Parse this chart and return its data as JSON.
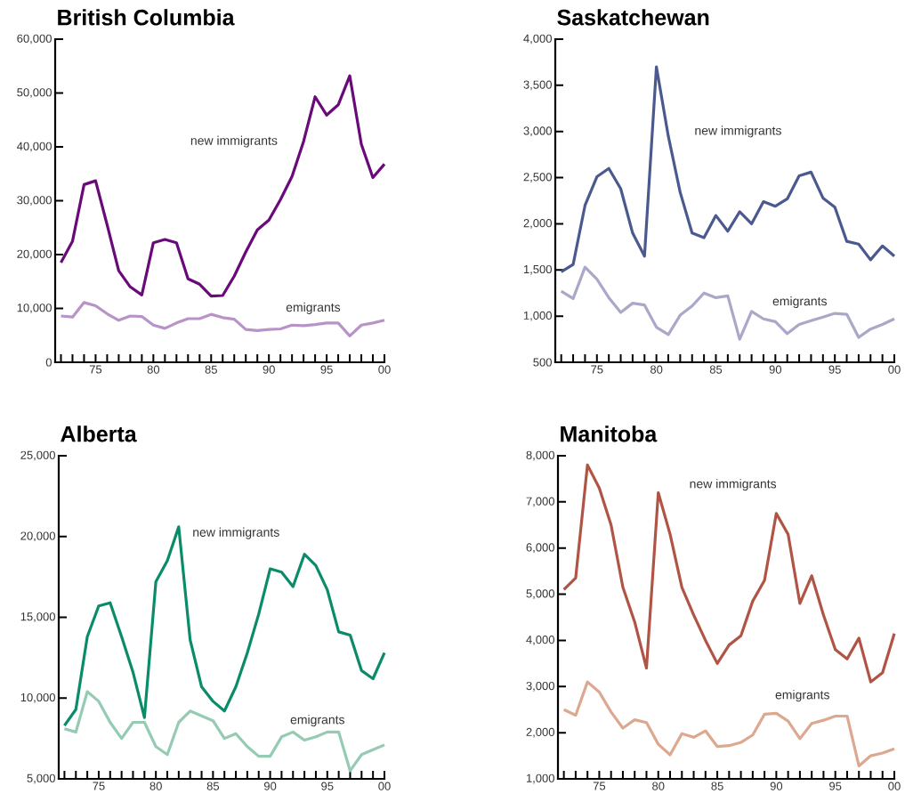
{
  "chart_data": [
    {
      "type": "line",
      "title": "British Columbia",
      "x": [
        1972,
        1973,
        1974,
        1975,
        1976,
        1977,
        1978,
        1979,
        1980,
        1981,
        1982,
        1983,
        1984,
        1985,
        1986,
        1987,
        1988,
        1989,
        1990,
        1991,
        1992,
        1993,
        1994,
        1995,
        1996,
        1997,
        1998,
        1999,
        2000
      ],
      "xlim": [
        1971.5,
        2000
      ],
      "xticks": [
        {
          "value": 1972,
          "label": null
        },
        {
          "value": 1973,
          "label": null
        },
        {
          "value": 1974,
          "label": null
        },
        {
          "value": 1975,
          "label": "75"
        },
        {
          "value": 1976,
          "label": null
        },
        {
          "value": 1977,
          "label": null
        },
        {
          "value": 1978,
          "label": null
        },
        {
          "value": 1979,
          "label": null
        },
        {
          "value": 1980,
          "label": "80"
        },
        {
          "value": 1981,
          "label": null
        },
        {
          "value": 1982,
          "label": null
        },
        {
          "value": 1983,
          "label": null
        },
        {
          "value": 1984,
          "label": null
        },
        {
          "value": 1985,
          "label": "85"
        },
        {
          "value": 1986,
          "label": null
        },
        {
          "value": 1987,
          "label": null
        },
        {
          "value": 1988,
          "label": null
        },
        {
          "value": 1989,
          "label": null
        },
        {
          "value": 1990,
          "label": "90"
        },
        {
          "value": 1991,
          "label": null
        },
        {
          "value": 1992,
          "label": null
        },
        {
          "value": 1993,
          "label": null
        },
        {
          "value": 1994,
          "label": null
        },
        {
          "value": 1995,
          "label": "95"
        },
        {
          "value": 1996,
          "label": null
        },
        {
          "value": 1997,
          "label": null
        },
        {
          "value": 1998,
          "label": null
        },
        {
          "value": 1999,
          "label": null
        },
        {
          "value": 2000,
          "label": "00"
        }
      ],
      "ylim": [
        0,
        60000
      ],
      "yticks": [
        0,
        {
          "value": 10000,
          "label": "10,000"
        },
        {
          "value": 20000,
          "label": "20,000"
        },
        {
          "value": 30000,
          "label": "30,000"
        },
        {
          "value": 40000,
          "label": "40,000"
        },
        {
          "value": 50000,
          "label": "50,000"
        },
        {
          "value": 60000,
          "label": "60,000"
        }
      ],
      "series": [
        {
          "name": "new immigrants",
          "color": "#6a0a7a",
          "values": [
            18500,
            22500,
            33000,
            33700,
            25500,
            17000,
            14000,
            12500,
            22200,
            22800,
            22200,
            15500,
            14500,
            12300,
            12400,
            16000,
            20500,
            24600,
            26400,
            30200,
            34500,
            41000,
            49300,
            45900,
            47800,
            53200,
            40500,
            34300,
            36800
          ]
        },
        {
          "name": "emigrants",
          "color": "#b893c8",
          "values": [
            8600,
            8400,
            11100,
            10500,
            9000,
            7800,
            8600,
            8500,
            6900,
            6300,
            7300,
            8100,
            8100,
            8900,
            8300,
            8000,
            6100,
            5900,
            6100,
            6200,
            6900,
            6800,
            7000,
            7300,
            7300,
            4900,
            6900,
            7300,
            7800
          ]
        }
      ]
    },
    {
      "type": "line",
      "title": "Saskatchewan",
      "x": [
        1972,
        1973,
        1974,
        1975,
        1976,
        1977,
        1978,
        1979,
        1980,
        1981,
        1982,
        1983,
        1984,
        1985,
        1986,
        1987,
        1988,
        1989,
        1990,
        1991,
        1992,
        1993,
        1994,
        1995,
        1996,
        1997,
        1998,
        1999,
        2000
      ],
      "xlim": [
        1971.5,
        2000
      ],
      "xticks": [
        {
          "value": 1972,
          "label": null
        },
        {
          "value": 1973,
          "label": null
        },
        {
          "value": 1974,
          "label": null
        },
        {
          "value": 1975,
          "label": "75"
        },
        {
          "value": 1976,
          "label": null
        },
        {
          "value": 1977,
          "label": null
        },
        {
          "value": 1978,
          "label": null
        },
        {
          "value": 1979,
          "label": null
        },
        {
          "value": 1980,
          "label": "80"
        },
        {
          "value": 1981,
          "label": null
        },
        {
          "value": 1982,
          "label": null
        },
        {
          "value": 1983,
          "label": null
        },
        {
          "value": 1984,
          "label": null
        },
        {
          "value": 1985,
          "label": "85"
        },
        {
          "value": 1986,
          "label": null
        },
        {
          "value": 1987,
          "label": null
        },
        {
          "value": 1988,
          "label": null
        },
        {
          "value": 1989,
          "label": null
        },
        {
          "value": 1990,
          "label": "90"
        },
        {
          "value": 1991,
          "label": null
        },
        {
          "value": 1992,
          "label": null
        },
        {
          "value": 1993,
          "label": null
        },
        {
          "value": 1994,
          "label": null
        },
        {
          "value": 1995,
          "label": "95"
        },
        {
          "value": 1996,
          "label": null
        },
        {
          "value": 1997,
          "label": null
        },
        {
          "value": 1998,
          "label": null
        },
        {
          "value": 1999,
          "label": null
        },
        {
          "value": 2000,
          "label": "00"
        }
      ],
      "ylim": [
        500,
        4000
      ],
      "yticks": [
        500,
        {
          "value": 1000,
          "label": "1,000"
        },
        {
          "value": 1500,
          "label": "1,500"
        },
        {
          "value": 2000,
          "label": "2,000"
        },
        {
          "value": 2500,
          "label": "2,500"
        },
        {
          "value": 3000,
          "label": "3,000"
        },
        {
          "value": 3500,
          "label": "3,500"
        },
        {
          "value": 4000,
          "label": "4,000"
        }
      ],
      "series": [
        {
          "name": "new immigrants",
          "color": "#4a5a8e",
          "values": [
            1480,
            1560,
            2200,
            2510,
            2600,
            2380,
            1900,
            1650,
            3700,
            2950,
            2340,
            1900,
            1850,
            2090,
            1920,
            2130,
            2000,
            2240,
            2190,
            2270,
            2520,
            2560,
            2280,
            2180,
            1810,
            1780,
            1610,
            1760,
            1650
          ]
        },
        {
          "name": "emigrants",
          "color": "#aaa8c8",
          "values": [
            1270,
            1190,
            1530,
            1400,
            1200,
            1040,
            1140,
            1120,
            880,
            800,
            1010,
            1110,
            1250,
            1200,
            1220,
            750,
            1050,
            970,
            940,
            810,
            910,
            950,
            990,
            1030,
            1020,
            770,
            860,
            910,
            970
          ]
        }
      ]
    },
    {
      "type": "line",
      "title": "Alberta",
      "x": [
        1972,
        1973,
        1974,
        1975,
        1976,
        1977,
        1978,
        1979,
        1980,
        1981,
        1982,
        1983,
        1984,
        1985,
        1986,
        1987,
        1988,
        1989,
        1990,
        1991,
        1992,
        1993,
        1994,
        1995,
        1996,
        1997,
        1998,
        1999,
        2000
      ],
      "xlim": [
        1971.5,
        2000
      ],
      "xticks": [
        {
          "value": 1972,
          "label": null
        },
        {
          "value": 1973,
          "label": null
        },
        {
          "value": 1974,
          "label": null
        },
        {
          "value": 1975,
          "label": "75"
        },
        {
          "value": 1976,
          "label": null
        },
        {
          "value": 1977,
          "label": null
        },
        {
          "value": 1978,
          "label": null
        },
        {
          "value": 1979,
          "label": null
        },
        {
          "value": 1980,
          "label": "80"
        },
        {
          "value": 1981,
          "label": null
        },
        {
          "value": 1982,
          "label": null
        },
        {
          "value": 1983,
          "label": null
        },
        {
          "value": 1984,
          "label": null
        },
        {
          "value": 1985,
          "label": "85"
        },
        {
          "value": 1986,
          "label": null
        },
        {
          "value": 1987,
          "label": null
        },
        {
          "value": 1988,
          "label": null
        },
        {
          "value": 1989,
          "label": null
        },
        {
          "value": 1990,
          "label": "90"
        },
        {
          "value": 1991,
          "label": null
        },
        {
          "value": 1992,
          "label": null
        },
        {
          "value": 1993,
          "label": null
        },
        {
          "value": 1994,
          "label": null
        },
        {
          "value": 1995,
          "label": "95"
        },
        {
          "value": 1996,
          "label": null
        },
        {
          "value": 1997,
          "label": null
        },
        {
          "value": 1998,
          "label": null
        },
        {
          "value": 1999,
          "label": null
        },
        {
          "value": 2000,
          "label": "00"
        }
      ],
      "ylim": [
        5000,
        25000
      ],
      "yticks": [
        {
          "value": 5000,
          "label": "5,000"
        },
        {
          "value": 10000,
          "label": "10,000"
        },
        {
          "value": 15000,
          "label": "15,000"
        },
        {
          "value": 20000,
          "label": "20,000"
        },
        {
          "value": 25000,
          "label": "25,000"
        }
      ],
      "series": [
        {
          "name": "new immigrants",
          "color": "#0a8c6a",
          "values": [
            8300,
            9300,
            13800,
            15700,
            15900,
            13800,
            11600,
            8800,
            17200,
            18500,
            20600,
            13600,
            10700,
            9800,
            9200,
            10700,
            12800,
            15200,
            18000,
            17800,
            16900,
            18900,
            18200,
            16700,
            14100,
            13900,
            11700,
            11200,
            12800
          ]
        },
        {
          "name": "emigrants",
          "color": "#96cbb3",
          "values": [
            8100,
            7900,
            10400,
            9800,
            8500,
            7500,
            8500,
            8500,
            7000,
            6500,
            8500,
            9200,
            8900,
            8600,
            7500,
            7800,
            7000,
            6400,
            6400,
            7600,
            7900,
            7400,
            7600,
            7900,
            7900,
            5500,
            6500,
            6800,
            7100
          ]
        }
      ]
    },
    {
      "type": "line",
      "title": "Manitoba",
      "x": [
        1972,
        1973,
        1974,
        1975,
        1976,
        1977,
        1978,
        1979,
        1980,
        1981,
        1982,
        1983,
        1984,
        1985,
        1986,
        1987,
        1988,
        1989,
        1990,
        1991,
        1992,
        1993,
        1994,
        1995,
        1996,
        1997,
        1998,
        1999,
        2000
      ],
      "xlim": [
        1971.5,
        2000
      ],
      "xticks": [
        {
          "value": 1972,
          "label": null
        },
        {
          "value": 1973,
          "label": null
        },
        {
          "value": 1974,
          "label": null
        },
        {
          "value": 1975,
          "label": "75"
        },
        {
          "value": 1976,
          "label": null
        },
        {
          "value": 1977,
          "label": null
        },
        {
          "value": 1978,
          "label": null
        },
        {
          "value": 1979,
          "label": null
        },
        {
          "value": 1980,
          "label": "80"
        },
        {
          "value": 1981,
          "label": null
        },
        {
          "value": 1982,
          "label": null
        },
        {
          "value": 1983,
          "label": null
        },
        {
          "value": 1984,
          "label": null
        },
        {
          "value": 1985,
          "label": "85"
        },
        {
          "value": 1986,
          "label": null
        },
        {
          "value": 1987,
          "label": null
        },
        {
          "value": 1988,
          "label": null
        },
        {
          "value": 1989,
          "label": null
        },
        {
          "value": 1990,
          "label": "90"
        },
        {
          "value": 1991,
          "label": null
        },
        {
          "value": 1992,
          "label": null
        },
        {
          "value": 1993,
          "label": null
        },
        {
          "value": 1994,
          "label": null
        },
        {
          "value": 1995,
          "label": "95"
        },
        {
          "value": 1996,
          "label": null
        },
        {
          "value": 1997,
          "label": null
        },
        {
          "value": 1998,
          "label": null
        },
        {
          "value": 1999,
          "label": null
        },
        {
          "value": 2000,
          "label": "00"
        }
      ],
      "ylim": [
        1000,
        8000
      ],
      "yticks": [
        {
          "value": 1000,
          "label": "1,000"
        },
        {
          "value": 2000,
          "label": "2,000"
        },
        {
          "value": 3000,
          "label": "3,000"
        },
        {
          "value": 4000,
          "label": "4,000"
        },
        {
          "value": 5000,
          "label": "5,000"
        },
        {
          "value": 6000,
          "label": "6,000"
        },
        {
          "value": 7000,
          "label": "7,000"
        },
        {
          "value": 8000,
          "label": "8,000"
        }
      ],
      "series": [
        {
          "name": "new immigrants",
          "color": "#b05545",
          "values": [
            5100,
            5350,
            7800,
            7300,
            6500,
            5150,
            4400,
            3400,
            7200,
            6300,
            5150,
            4550,
            4000,
            3500,
            3900,
            4100,
            4850,
            5300,
            6750,
            6300,
            4800,
            5400,
            4550,
            3800,
            3600,
            4050,
            3100,
            3300,
            4150
          ]
        },
        {
          "name": "emigrants",
          "color": "#dca890",
          "values": [
            2500,
            2380,
            3100,
            2880,
            2450,
            2100,
            2280,
            2220,
            1750,
            1520,
            1980,
            1900,
            2040,
            1700,
            1720,
            1790,
            1950,
            2400,
            2420,
            2250,
            1870,
            2200,
            2270,
            2360,
            2360,
            1280,
            1500,
            1560,
            1650
          ]
        }
      ]
    }
  ]
}
